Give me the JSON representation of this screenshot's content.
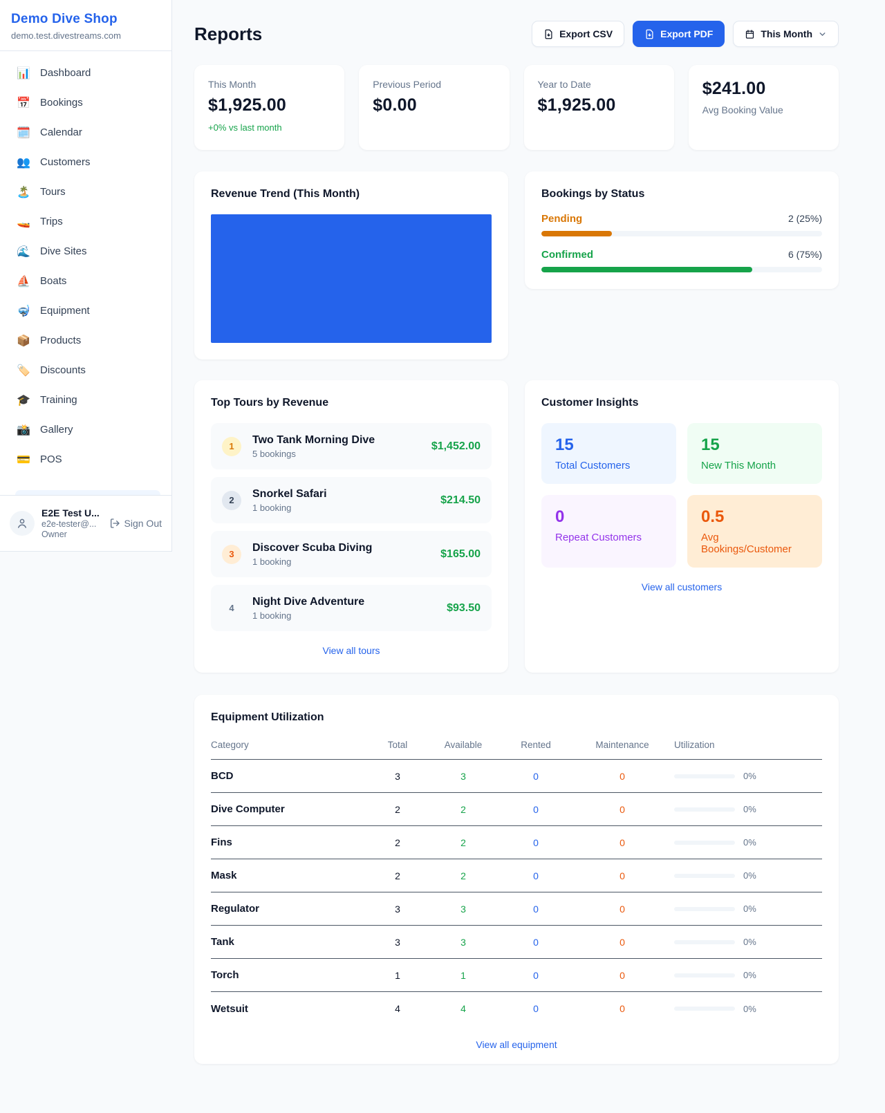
{
  "colors": {
    "accent": "#2563eb",
    "green": "#16a34a",
    "orange": "#ea580c",
    "amber": "#d97706",
    "purple": "#9333ea"
  },
  "sidebar": {
    "brand": "Demo Dive Shop",
    "domain": "demo.test.divestreams.com",
    "items": [
      {
        "name": "dashboard",
        "icon": "📊",
        "label": "Dashboard"
      },
      {
        "name": "bookings",
        "icon": "📅",
        "label": "Bookings"
      },
      {
        "name": "calendar",
        "icon": "🗓️",
        "label": "Calendar"
      },
      {
        "name": "customers",
        "icon": "👥",
        "label": "Customers"
      },
      {
        "name": "tours",
        "icon": "🏝️",
        "label": "Tours"
      },
      {
        "name": "trips",
        "icon": "🚤",
        "label": "Trips"
      },
      {
        "name": "dive-sites",
        "icon": "🌊",
        "label": "Dive Sites"
      },
      {
        "name": "boats",
        "icon": "⛵",
        "label": "Boats"
      },
      {
        "name": "equipment",
        "icon": "🤿",
        "label": "Equipment"
      },
      {
        "name": "products",
        "icon": "📦",
        "label": "Products"
      },
      {
        "name": "discounts",
        "icon": "🏷️",
        "label": "Discounts"
      },
      {
        "name": "training",
        "icon": "🎓",
        "label": "Training"
      },
      {
        "name": "gallery",
        "icon": "📸",
        "label": "Gallery"
      },
      {
        "name": "pos",
        "icon": "💳",
        "label": "POS"
      }
    ],
    "user": {
      "name": "E2E Test U...",
      "email": "e2e-tester@...",
      "role": "Owner",
      "sign_out": "Sign Out"
    }
  },
  "header": {
    "title": "Reports",
    "export_csv": "Export CSV",
    "export_pdf": "Export PDF",
    "period": "This Month"
  },
  "stats": [
    {
      "label": "This Month",
      "value": "$1,925.00",
      "delta": "+0% vs last month",
      "value_first": false
    },
    {
      "label": "Previous Period",
      "value": "$0.00",
      "delta": "",
      "value_first": false
    },
    {
      "label": "Year to Date",
      "value": "$1,925.00",
      "delta": "",
      "value_first": false
    },
    {
      "label": "Avg Booking Value",
      "value": "$241.00",
      "delta": "",
      "value_first": true
    }
  ],
  "revenue_trend": {
    "title": "Revenue Trend (This Month)",
    "bar_color": "#2563eb"
  },
  "chart_data": {
    "type": "bar",
    "title": "Revenue Trend (This Month)",
    "categories": [
      "This Month"
    ],
    "values": [
      1925
    ],
    "xlabel": "",
    "ylabel": "",
    "legend": "none",
    "grid": false,
    "note": "single full-width solid blue bar, no axes or tick labels visible"
  },
  "bookings_by_status": {
    "title": "Bookings by Status",
    "items": [
      {
        "label": "Pending",
        "count": "2 (25%)",
        "pct": 25,
        "color": "#d97706"
      },
      {
        "label": "Confirmed",
        "count": "6 (75%)",
        "pct": 75,
        "color": "#16a34a"
      }
    ]
  },
  "top_tours": {
    "title": "Top Tours by Revenue",
    "link": "View all tours",
    "items": [
      {
        "rank": "1",
        "name": "Two Tank Morning Dive",
        "bookings": "5 bookings",
        "revenue": "$1,452.00",
        "badge_bg": "#fef3c7",
        "badge_color": "#d97706"
      },
      {
        "rank": "2",
        "name": "Snorkel Safari",
        "bookings": "1 booking",
        "revenue": "$214.50",
        "badge_bg": "#e2e8f0",
        "badge_color": "#334155"
      },
      {
        "rank": "3",
        "name": "Discover Scuba Diving",
        "bookings": "1 booking",
        "revenue": "$165.00",
        "badge_bg": "#ffedd5",
        "badge_color": "#ea580c"
      },
      {
        "rank": "4",
        "name": "Night Dive Adventure",
        "bookings": "1 booking",
        "revenue": "$93.50",
        "badge_bg": "transparent",
        "badge_color": "#64748b"
      }
    ]
  },
  "customer_insights": {
    "title": "Customer Insights",
    "link": "View all customers",
    "tiles": [
      {
        "value": "15",
        "label": "Total Customers",
        "bg": "#eff6ff",
        "color": "#2563eb"
      },
      {
        "value": "15",
        "label": "New This Month",
        "bg": "#f0fdf4",
        "color": "#16a34a"
      },
      {
        "value": "0",
        "label": "Repeat Customers",
        "bg": "#faf5ff",
        "color": "#9333ea"
      },
      {
        "value": "0.5",
        "label": "Avg Bookings/Customer",
        "bg": "#ffedd5",
        "color": "#ea580c"
      }
    ]
  },
  "equipment": {
    "title": "Equipment Utilization",
    "link": "View all equipment",
    "columns": [
      "Category",
      "Total",
      "Available",
      "Rented",
      "Maintenance",
      "Utilization"
    ],
    "rows": [
      {
        "category": "BCD",
        "total": "3",
        "available": "3",
        "rented": "0",
        "maintenance": "0",
        "utilization": "0%",
        "pct": 0
      },
      {
        "category": "Dive Computer",
        "total": "2",
        "available": "2",
        "rented": "0",
        "maintenance": "0",
        "utilization": "0%",
        "pct": 0
      },
      {
        "category": "Fins",
        "total": "2",
        "available": "2",
        "rented": "0",
        "maintenance": "0",
        "utilization": "0%",
        "pct": 0
      },
      {
        "category": "Mask",
        "total": "2",
        "available": "2",
        "rented": "0",
        "maintenance": "0",
        "utilization": "0%",
        "pct": 0
      },
      {
        "category": "Regulator",
        "total": "3",
        "available": "3",
        "rented": "0",
        "maintenance": "0",
        "utilization": "0%",
        "pct": 0
      },
      {
        "category": "Tank",
        "total": "3",
        "available": "3",
        "rented": "0",
        "maintenance": "0",
        "utilization": "0%",
        "pct": 0
      },
      {
        "category": "Torch",
        "total": "1",
        "available": "1",
        "rented": "0",
        "maintenance": "0",
        "utilization": "0%",
        "pct": 0
      },
      {
        "category": "Wetsuit",
        "total": "4",
        "available": "4",
        "rented": "0",
        "maintenance": "0",
        "utilization": "0%",
        "pct": 0
      }
    ]
  }
}
